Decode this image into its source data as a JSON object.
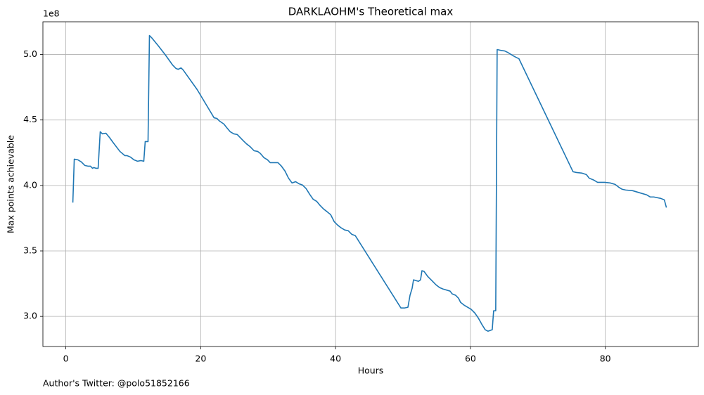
{
  "chart_data": {
    "type": "line",
    "title": "DARKLAOHM's Theoretical max",
    "xlabel": "Hours",
    "ylabel": "Max points achievable",
    "y_offset_label": "1e8",
    "annotation": "Author's Twitter: @polo51852166",
    "color": "#1f77b4",
    "grid": true,
    "x": [
      1.04,
      1.25,
      1.77,
      2.29,
      2.81,
      3.33,
      3.65,
      3.96,
      4.17,
      4.48,
      4.79,
      5.1,
      5.42,
      5.94,
      6.46,
      6.98,
      8.02,
      8.75,
      9.06,
      9.58,
      10.1,
      10.63,
      11.15,
      11.56,
      11.77,
      12.19,
      12.4,
      12.71,
      13.75,
      14.79,
      15.83,
      16.35,
      16.67,
      17.08,
      17.4,
      19.48,
      21.98,
      22.4,
      22.81,
      23.44,
      23.85,
      24.38,
      24.9,
      25.42,
      25.83,
      26.35,
      26.77,
      27.29,
      27.92,
      28.44,
      28.85,
      29.38,
      29.9,
      30.31,
      31.46,
      31.98,
      32.5,
      33.02,
      33.54,
      34.06,
      34.58,
      35.1,
      35.63,
      36.15,
      36.67,
      37.19,
      37.71,
      38.23,
      38.75,
      39.27,
      39.79,
      40.31,
      40.83,
      41.35,
      41.88,
      42.4,
      42.92,
      49.69,
      50.21,
      50.73,
      51.04,
      51.35,
      51.56,
      52.29,
      52.6,
      52.81,
      53.13,
      53.65,
      54.38,
      54.9,
      55.42,
      55.94,
      56.98,
      57.29,
      57.81,
      58.23,
      58.54,
      59.06,
      60.1,
      60.63,
      61.15,
      61.67,
      62.19,
      62.6,
      63.23,
      63.44,
      63.75,
      63.96,
      64.48,
      65.1,
      65.52,
      66.04,
      66.56,
      67.19,
      75.21,
      75.73,
      76.56,
      77.19,
      77.6,
      78.33,
      78.85,
      79.9,
      80.73,
      81.46,
      81.98,
      82.5,
      83.02,
      84.06,
      85.1,
      86.15,
      86.67,
      87.19,
      88.23,
      88.75,
      89.06
    ],
    "values": [
      386900000.0,
      420100000.0,
      419600000.0,
      418000000.0,
      415300000.0,
      414700000.0,
      414700000.0,
      413100000.0,
      413700000.0,
      413100000.0,
      413100000.0,
      441000000.0,
      439400000.0,
      439900000.0,
      436700000.0,
      433000000.0,
      426000000.0,
      422800000.0,
      422800000.0,
      421700000.0,
      419600000.0,
      418500000.0,
      419000000.0,
      418500000.0,
      433500000.0,
      433500000.0,
      514500000.0,
      512900000.0,
      506400000.0,
      499500000.0,
      492000000.0,
      489300000.0,
      488700000.0,
      489800000.0,
      488200000.0,
      473200000.0,
      451700000.0,
      451200000.0,
      449100000.0,
      446900000.0,
      444200000.0,
      441000000.0,
      439400000.0,
      438900000.0,
      436700000.0,
      434000000.0,
      431900000.0,
      429800000.0,
      426500000.0,
      426000000.0,
      424400000.0,
      421200000.0,
      419600000.0,
      417400000.0,
      417400000.0,
      414700000.0,
      411000000.0,
      405600000.0,
      401900000.0,
      402900000.0,
      401300000.0,
      400300000.0,
      397600000.0,
      393300000.0,
      389500000.0,
      387900000.0,
      384700000.0,
      382000000.0,
      379900000.0,
      377700000.0,
      372400000.0,
      369700000.0,
      367600000.0,
      366000000.0,
      365400000.0,
      362700000.0,
      361700000.0,
      306400000.0,
      306400000.0,
      307000000.0,
      316100000.0,
      321400000.0,
      327900000.0,
      326800000.0,
      327900000.0,
      334900000.0,
      334300000.0,
      330600000.0,
      326800000.0,
      324100000.0,
      322000000.0,
      320900000.0,
      319300000.0,
      317200000.0,
      316100000.0,
      313900000.0,
      310700000.0,
      308600000.0,
      305400000.0,
      302700000.0,
      298900000.0,
      294100000.0,
      289800000.0,
      288700000.0,
      289800000.0,
      304300000.0,
      304300000.0,
      503800000.0,
      503200000.0,
      502700000.0,
      501600000.0,
      500000000.0,
      498400000.0,
      496800000.0,
      410500000.0,
      409900000.0,
      409400000.0,
      408300000.0,
      405600000.0,
      404000000.0,
      402400000.0,
      402400000.0,
      401900000.0,
      400800000.0,
      398700000.0,
      397100000.0,
      396500000.0,
      396000000.0,
      394400000.0,
      392800000.0,
      391200000.0,
      391200000.0,
      390100000.0,
      389000000.0,
      383100000.0
    ],
    "xlim": [
      -3.4,
      93.8
    ],
    "xticks": [
      0,
      20,
      40,
      60,
      80
    ],
    "ylim": [
      277000000.0,
      525000000.0
    ],
    "yticks": [
      {
        "value": 300000000.0,
        "label": "3.0"
      },
      {
        "value": 350000000.0,
        "label": "3.5"
      },
      {
        "value": 400000000.0,
        "label": "4.0"
      },
      {
        "value": 450000000.0,
        "label": "4.5"
      },
      {
        "value": 500000000.0,
        "label": "5.0"
      }
    ]
  }
}
